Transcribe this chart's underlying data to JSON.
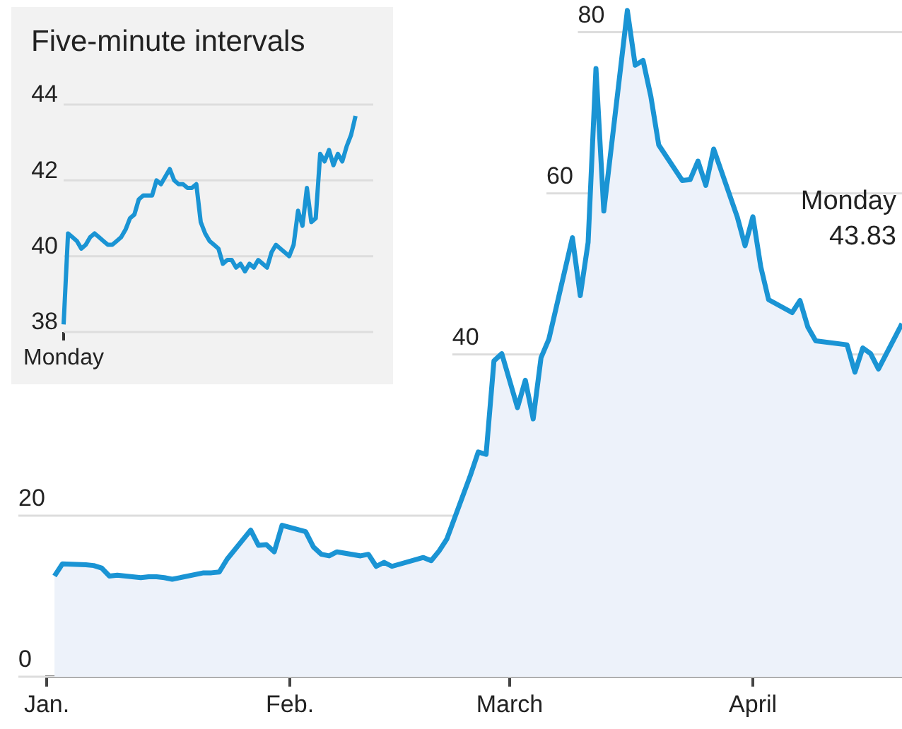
{
  "chart_data": [
    {
      "type": "area",
      "x": [
        "--01-02",
        "--01-03",
        "--01-06",
        "--01-07",
        "--01-08",
        "--01-09",
        "--01-10",
        "--01-13",
        "--01-14",
        "--01-15",
        "--01-16",
        "--01-17",
        "--01-21",
        "--01-22",
        "--01-23",
        "--01-24",
        "--01-27",
        "--01-28",
        "--01-29",
        "--01-30",
        "--01-31",
        "--02-03",
        "--02-04",
        "--02-05",
        "--02-06",
        "--02-07",
        "--02-10",
        "--02-11",
        "--02-12",
        "--02-13",
        "--02-14",
        "--02-18",
        "--02-19",
        "--02-20",
        "--02-21",
        "--02-24",
        "--02-25",
        "--02-26",
        "--02-27",
        "--02-28",
        "--03-02",
        "--03-03",
        "--03-04",
        "--03-05",
        "--03-06",
        "--03-09",
        "--03-10",
        "--03-11",
        "--03-12",
        "--03-13",
        "--03-16",
        "--03-17",
        "--03-18",
        "--03-19",
        "--03-20",
        "--03-23",
        "--03-24",
        "--03-25",
        "--03-26",
        "--03-27",
        "--03-30",
        "--03-31",
        "--04-01",
        "--04-02",
        "--04-03",
        "--04-06",
        "--04-07",
        "--04-08",
        "--04-09",
        "--04-13",
        "--04-14",
        "--04-15",
        "--04-16",
        "--04-17",
        "--04-20"
      ],
      "series": [
        {
          "color": "#1a94d4",
          "values": [
            12.5,
            14.0,
            13.9,
            13.8,
            13.5,
            12.5,
            12.6,
            12.3,
            12.4,
            12.4,
            12.3,
            12.1,
            12.9,
            12.9,
            13.0,
            14.6,
            18.2,
            16.3,
            16.4,
            15.5,
            18.8,
            18.0,
            16.1,
            15.2,
            15.0,
            15.5,
            15.0,
            15.2,
            13.7,
            14.2,
            13.7,
            14.8,
            14.4,
            15.6,
            17.1,
            25.0,
            27.9,
            27.6,
            39.2,
            40.1,
            33.4,
            36.8,
            32.0,
            39.6,
            41.9,
            54.5,
            47.3,
            53.9,
            75.5,
            57.8,
            82.7,
            75.9,
            76.5,
            72.0,
            66.0,
            61.6,
            61.7,
            64.0,
            61.0,
            65.5,
            57.1,
            53.5,
            57.1,
            50.9,
            46.8,
            45.2,
            46.7,
            43.4,
            41.7,
            41.2,
            37.8,
            40.8,
            40.1,
            38.2,
            43.83
          ]
        }
      ],
      "xlim": [
        "--01-01",
        "--04-20"
      ],
      "xticks": [
        {
          "value": "--01-01",
          "label": "Jan."
        },
        {
          "value": "--02-01",
          "label": "Feb."
        },
        {
          "value": "--03-01",
          "label": "March"
        },
        {
          "value": "--04-01",
          "label": "April"
        }
      ],
      "ylim": [
        0,
        84
      ],
      "yticks": [
        0,
        20
      ],
      "ref_lines": [
        {
          "axis": "y",
          "value": 40,
          "label": "40"
        },
        {
          "axis": "y",
          "value": 60,
          "label": "60"
        },
        {
          "axis": "y",
          "value": 80,
          "label": "80"
        }
      ],
      "grid": "y",
      "legend": false,
      "annotations": [
        "Monday\n43.83"
      ]
    },
    {
      "type": "line",
      "title": "Five-minute intervals",
      "categories": [
        "Monday",
        null,
        null,
        null,
        null,
        null,
        null,
        null,
        null,
        null,
        null,
        null,
        null,
        null,
        null,
        null,
        null,
        null,
        null,
        null,
        null,
        null,
        null,
        null,
        null,
        null,
        null,
        null,
        null,
        null,
        null,
        null,
        null,
        null,
        null,
        null,
        null,
        null,
        null,
        null,
        null,
        null,
        null,
        null,
        null,
        null,
        null,
        null,
        null,
        null,
        null,
        null,
        null,
        null,
        null,
        null,
        null,
        null,
        null,
        null,
        null,
        null,
        null,
        null,
        null,
        null,
        null,
        null,
        null,
        null,
        null
      ],
      "series": [
        {
          "color": "#1a94d4",
          "values": [
            38.2,
            40.6,
            40.5,
            40.4,
            40.2,
            40.3,
            40.5,
            40.6,
            40.5,
            40.4,
            40.3,
            40.3,
            40.4,
            40.5,
            40.7,
            41.0,
            41.1,
            41.5,
            41.6,
            41.6,
            41.6,
            42.0,
            41.9,
            42.1,
            42.3,
            42.0,
            41.9,
            41.9,
            41.8,
            41.8,
            41.9,
            40.9,
            40.6,
            40.4,
            40.3,
            40.2,
            39.8,
            39.9,
            39.9,
            39.7,
            39.8,
            39.6,
            39.8,
            39.7,
            39.9,
            39.8,
            39.7,
            40.1,
            40.3,
            40.2,
            40.1,
            40.0,
            40.3,
            41.2,
            40.8,
            41.8,
            40.9,
            41.0,
            42.7,
            42.5,
            42.8,
            42.4,
            42.7,
            42.5,
            42.9,
            43.2,
            43.7,
            null,
            null,
            null,
            null
          ]
        }
      ],
      "ylim": [
        38,
        44
      ],
      "yticks": [
        38,
        40,
        42,
        44
      ],
      "grid": "y",
      "legend": false
    }
  ]
}
